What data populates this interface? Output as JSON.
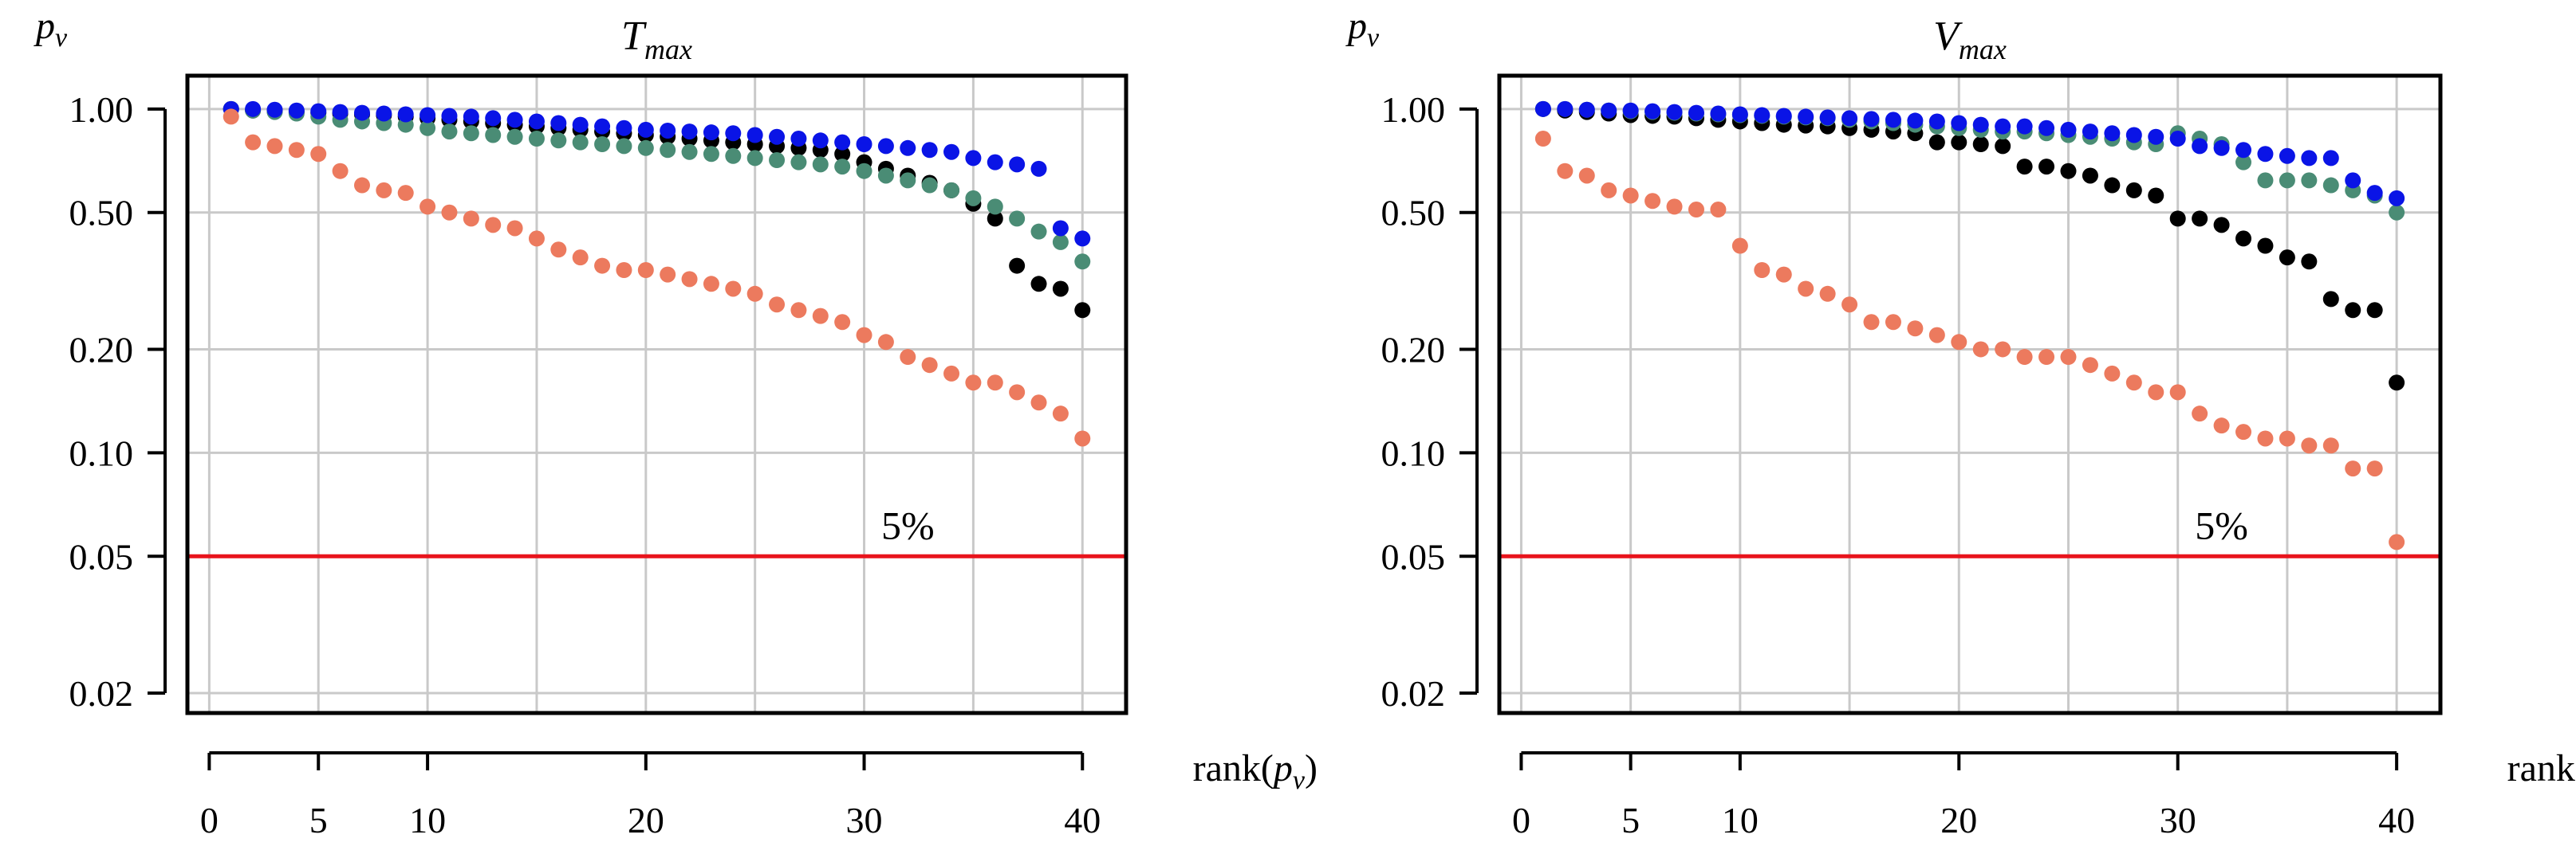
{
  "figure": {
    "y_label_main": "p",
    "y_label_sub": "v",
    "x_label_prefix": "rank(",
    "x_label_main": "p",
    "x_label_sub": "v",
    "x_label_suffix": ")"
  },
  "chart_data": [
    {
      "type": "scatter",
      "title_main": "T",
      "title_sub": "max",
      "xlabel": "rank(p_v)",
      "ylabel": "p_v",
      "yscale": "log",
      "xlim": [
        -1,
        42
      ],
      "ylim": [
        0.0175,
        1.25
      ],
      "x_ticks": [
        0,
        5,
        10,
        20,
        30,
        40
      ],
      "x_tick_labels": [
        "0",
        "5",
        "10",
        "20",
        "30",
        "40"
      ],
      "y_ticks": [
        1.0,
        0.5,
        0.2,
        0.1,
        0.05,
        0.02
      ],
      "y_tick_labels": [
        "1.00",
        "0.50",
        "0.20",
        "0.10",
        "0.05",
        "0.02"
      ],
      "grid": true,
      "reference_line": {
        "y": 0.05,
        "label": "5%",
        "color": "#e8141c"
      },
      "series": [
        {
          "name": "black",
          "color": "#000000",
          "x": [
            1,
            2,
            3,
            4,
            5,
            6,
            7,
            8,
            9,
            10,
            11,
            12,
            13,
            14,
            15,
            16,
            17,
            18,
            19,
            20,
            21,
            22,
            23,
            24,
            25,
            26,
            27,
            28,
            29,
            30,
            31,
            32,
            33,
            34,
            35,
            36,
            37,
            38,
            39,
            40
          ],
          "values": [
            1.0,
            0.99,
            0.985,
            0.98,
            0.975,
            0.97,
            0.965,
            0.96,
            0.95,
            0.94,
            0.93,
            0.92,
            0.91,
            0.9,
            0.89,
            0.88,
            0.87,
            0.86,
            0.85,
            0.84,
            0.83,
            0.82,
            0.81,
            0.8,
            0.79,
            0.78,
            0.77,
            0.76,
            0.74,
            0.7,
            0.67,
            0.64,
            0.61,
            0.58,
            0.53,
            0.48,
            0.35,
            0.31,
            0.3,
            0.26
          ]
        },
        {
          "name": "teal",
          "color": "#4a8c75",
          "x": [
            1,
            2,
            3,
            4,
            5,
            6,
            7,
            8,
            9,
            10,
            11,
            12,
            13,
            14,
            15,
            16,
            17,
            18,
            19,
            20,
            21,
            22,
            23,
            24,
            25,
            26,
            27,
            28,
            29,
            30,
            31,
            32,
            33,
            34,
            35,
            36,
            37,
            38,
            39,
            40
          ],
          "values": [
            1.0,
            0.99,
            0.98,
            0.97,
            0.95,
            0.93,
            0.92,
            0.91,
            0.9,
            0.88,
            0.86,
            0.85,
            0.84,
            0.83,
            0.82,
            0.81,
            0.8,
            0.79,
            0.78,
            0.77,
            0.76,
            0.75,
            0.74,
            0.73,
            0.72,
            0.71,
            0.7,
            0.69,
            0.68,
            0.66,
            0.64,
            0.62,
            0.6,
            0.58,
            0.55,
            0.52,
            0.48,
            0.44,
            0.41,
            0.36
          ]
        },
        {
          "name": "blue",
          "color": "#0a14e6",
          "x": [
            1,
            2,
            3,
            4,
            5,
            6,
            7,
            8,
            9,
            10,
            11,
            12,
            13,
            14,
            15,
            16,
            17,
            18,
            19,
            20,
            21,
            22,
            23,
            24,
            25,
            26,
            27,
            28,
            29,
            30,
            31,
            32,
            33,
            34,
            35,
            36,
            37,
            38,
            39,
            40
          ],
          "values": [
            1.0,
            1.0,
            0.995,
            0.99,
            0.985,
            0.98,
            0.975,
            0.97,
            0.965,
            0.96,
            0.955,
            0.95,
            0.94,
            0.93,
            0.92,
            0.91,
            0.9,
            0.89,
            0.88,
            0.87,
            0.865,
            0.86,
            0.855,
            0.85,
            0.84,
            0.83,
            0.82,
            0.81,
            0.8,
            0.79,
            0.78,
            0.77,
            0.76,
            0.75,
            0.72,
            0.7,
            0.69,
            0.67,
            0.45,
            0.42
          ]
        },
        {
          "name": "salmon",
          "color": "#ec7a5e",
          "x": [
            1,
            2,
            3,
            4,
            5,
            6,
            7,
            8,
            9,
            10,
            11,
            12,
            13,
            14,
            15,
            16,
            17,
            18,
            19,
            20,
            21,
            22,
            23,
            24,
            25,
            26,
            27,
            28,
            29,
            30,
            31,
            32,
            33,
            34,
            35,
            36,
            37,
            38,
            39,
            40
          ],
          "values": [
            0.95,
            0.8,
            0.78,
            0.76,
            0.74,
            0.66,
            0.6,
            0.58,
            0.57,
            0.52,
            0.5,
            0.48,
            0.46,
            0.45,
            0.42,
            0.39,
            0.37,
            0.35,
            0.34,
            0.34,
            0.33,
            0.32,
            0.31,
            0.3,
            0.29,
            0.27,
            0.26,
            0.25,
            0.24,
            0.22,
            0.21,
            0.19,
            0.18,
            0.17,
            0.16,
            0.16,
            0.15,
            0.14,
            0.13,
            0.11
          ]
        }
      ]
    },
    {
      "type": "scatter",
      "title_main": "V",
      "title_sub": "max",
      "xlabel": "rank(p_v)",
      "ylabel": "p_v",
      "yscale": "log",
      "xlim": [
        -1,
        42
      ],
      "ylim": [
        0.0175,
        1.25
      ],
      "x_ticks": [
        0,
        5,
        10,
        20,
        30,
        40
      ],
      "x_tick_labels": [
        "0",
        "5",
        "10",
        "20",
        "30",
        "40"
      ],
      "y_ticks": [
        1.0,
        0.5,
        0.2,
        0.1,
        0.05,
        0.02
      ],
      "y_tick_labels": [
        "1.00",
        "0.50",
        "0.20",
        "0.10",
        "0.05",
        "0.02"
      ],
      "grid": true,
      "reference_line": {
        "y": 0.05,
        "label": "5%",
        "color": "#e8141c"
      },
      "series": [
        {
          "name": "black",
          "color": "#000000",
          "x": [
            1,
            2,
            3,
            4,
            5,
            6,
            7,
            8,
            9,
            10,
            11,
            12,
            13,
            14,
            15,
            16,
            17,
            18,
            19,
            20,
            21,
            22,
            23,
            24,
            25,
            26,
            27,
            28,
            29,
            30,
            31,
            32,
            33,
            34,
            35,
            36,
            37,
            38,
            39,
            40
          ],
          "values": [
            1.0,
            0.99,
            0.98,
            0.97,
            0.96,
            0.955,
            0.95,
            0.94,
            0.93,
            0.92,
            0.91,
            0.9,
            0.895,
            0.89,
            0.88,
            0.87,
            0.86,
            0.85,
            0.8,
            0.8,
            0.79,
            0.78,
            0.68,
            0.68,
            0.66,
            0.64,
            0.6,
            0.58,
            0.56,
            0.48,
            0.48,
            0.46,
            0.42,
            0.4,
            0.37,
            0.36,
            0.28,
            0.26,
            0.26,
            0.16
          ]
        },
        {
          "name": "teal",
          "color": "#4a8c75",
          "x": [
            1,
            2,
            3,
            4,
            5,
            6,
            7,
            8,
            9,
            10,
            11,
            12,
            13,
            14,
            15,
            16,
            17,
            18,
            19,
            20,
            21,
            22,
            23,
            24,
            25,
            26,
            27,
            28,
            29,
            30,
            31,
            32,
            33,
            34,
            35,
            36,
            37,
            38,
            39,
            40
          ],
          "values": [
            1.0,
            1.0,
            0.995,
            0.99,
            0.985,
            0.98,
            0.975,
            0.97,
            0.965,
            0.96,
            0.955,
            0.95,
            0.945,
            0.94,
            0.93,
            0.92,
            0.91,
            0.9,
            0.89,
            0.88,
            0.87,
            0.86,
            0.86,
            0.85,
            0.84,
            0.83,
            0.82,
            0.8,
            0.79,
            0.85,
            0.82,
            0.79,
            0.7,
            0.62,
            0.62,
            0.62,
            0.6,
            0.58,
            0.56,
            0.5
          ]
        },
        {
          "name": "blue",
          "color": "#0a14e6",
          "x": [
            1,
            2,
            3,
            4,
            5,
            6,
            7,
            8,
            9,
            10,
            11,
            12,
            13,
            14,
            15,
            16,
            17,
            18,
            19,
            20,
            21,
            22,
            23,
            24,
            25,
            26,
            27,
            28,
            29,
            30,
            31,
            32,
            33,
            34,
            35,
            36,
            37,
            38,
            39,
            40
          ],
          "values": [
            1.0,
            1.0,
            0.995,
            0.99,
            0.99,
            0.985,
            0.98,
            0.975,
            0.97,
            0.965,
            0.96,
            0.955,
            0.95,
            0.945,
            0.94,
            0.935,
            0.93,
            0.925,
            0.92,
            0.91,
            0.9,
            0.89,
            0.89,
            0.88,
            0.87,
            0.86,
            0.85,
            0.84,
            0.83,
            0.82,
            0.78,
            0.77,
            0.76,
            0.74,
            0.73,
            0.72,
            0.72,
            0.62,
            0.57,
            0.55
          ]
        },
        {
          "name": "salmon",
          "color": "#ec7a5e",
          "x": [
            1,
            2,
            3,
            4,
            5,
            6,
            7,
            8,
            9,
            10,
            11,
            12,
            13,
            14,
            15,
            16,
            17,
            18,
            19,
            20,
            21,
            22,
            23,
            24,
            25,
            26,
            27,
            28,
            29,
            30,
            31,
            32,
            33,
            34,
            35,
            36,
            37,
            38,
            39,
            40
          ],
          "values": [
            0.82,
            0.66,
            0.64,
            0.58,
            0.56,
            0.54,
            0.52,
            0.51,
            0.51,
            0.4,
            0.34,
            0.33,
            0.3,
            0.29,
            0.27,
            0.24,
            0.24,
            0.23,
            0.22,
            0.21,
            0.2,
            0.2,
            0.19,
            0.19,
            0.19,
            0.18,
            0.17,
            0.16,
            0.15,
            0.15,
            0.13,
            0.12,
            0.115,
            0.11,
            0.11,
            0.105,
            0.105,
            0.09,
            0.09,
            0.055
          ]
        }
      ]
    }
  ]
}
